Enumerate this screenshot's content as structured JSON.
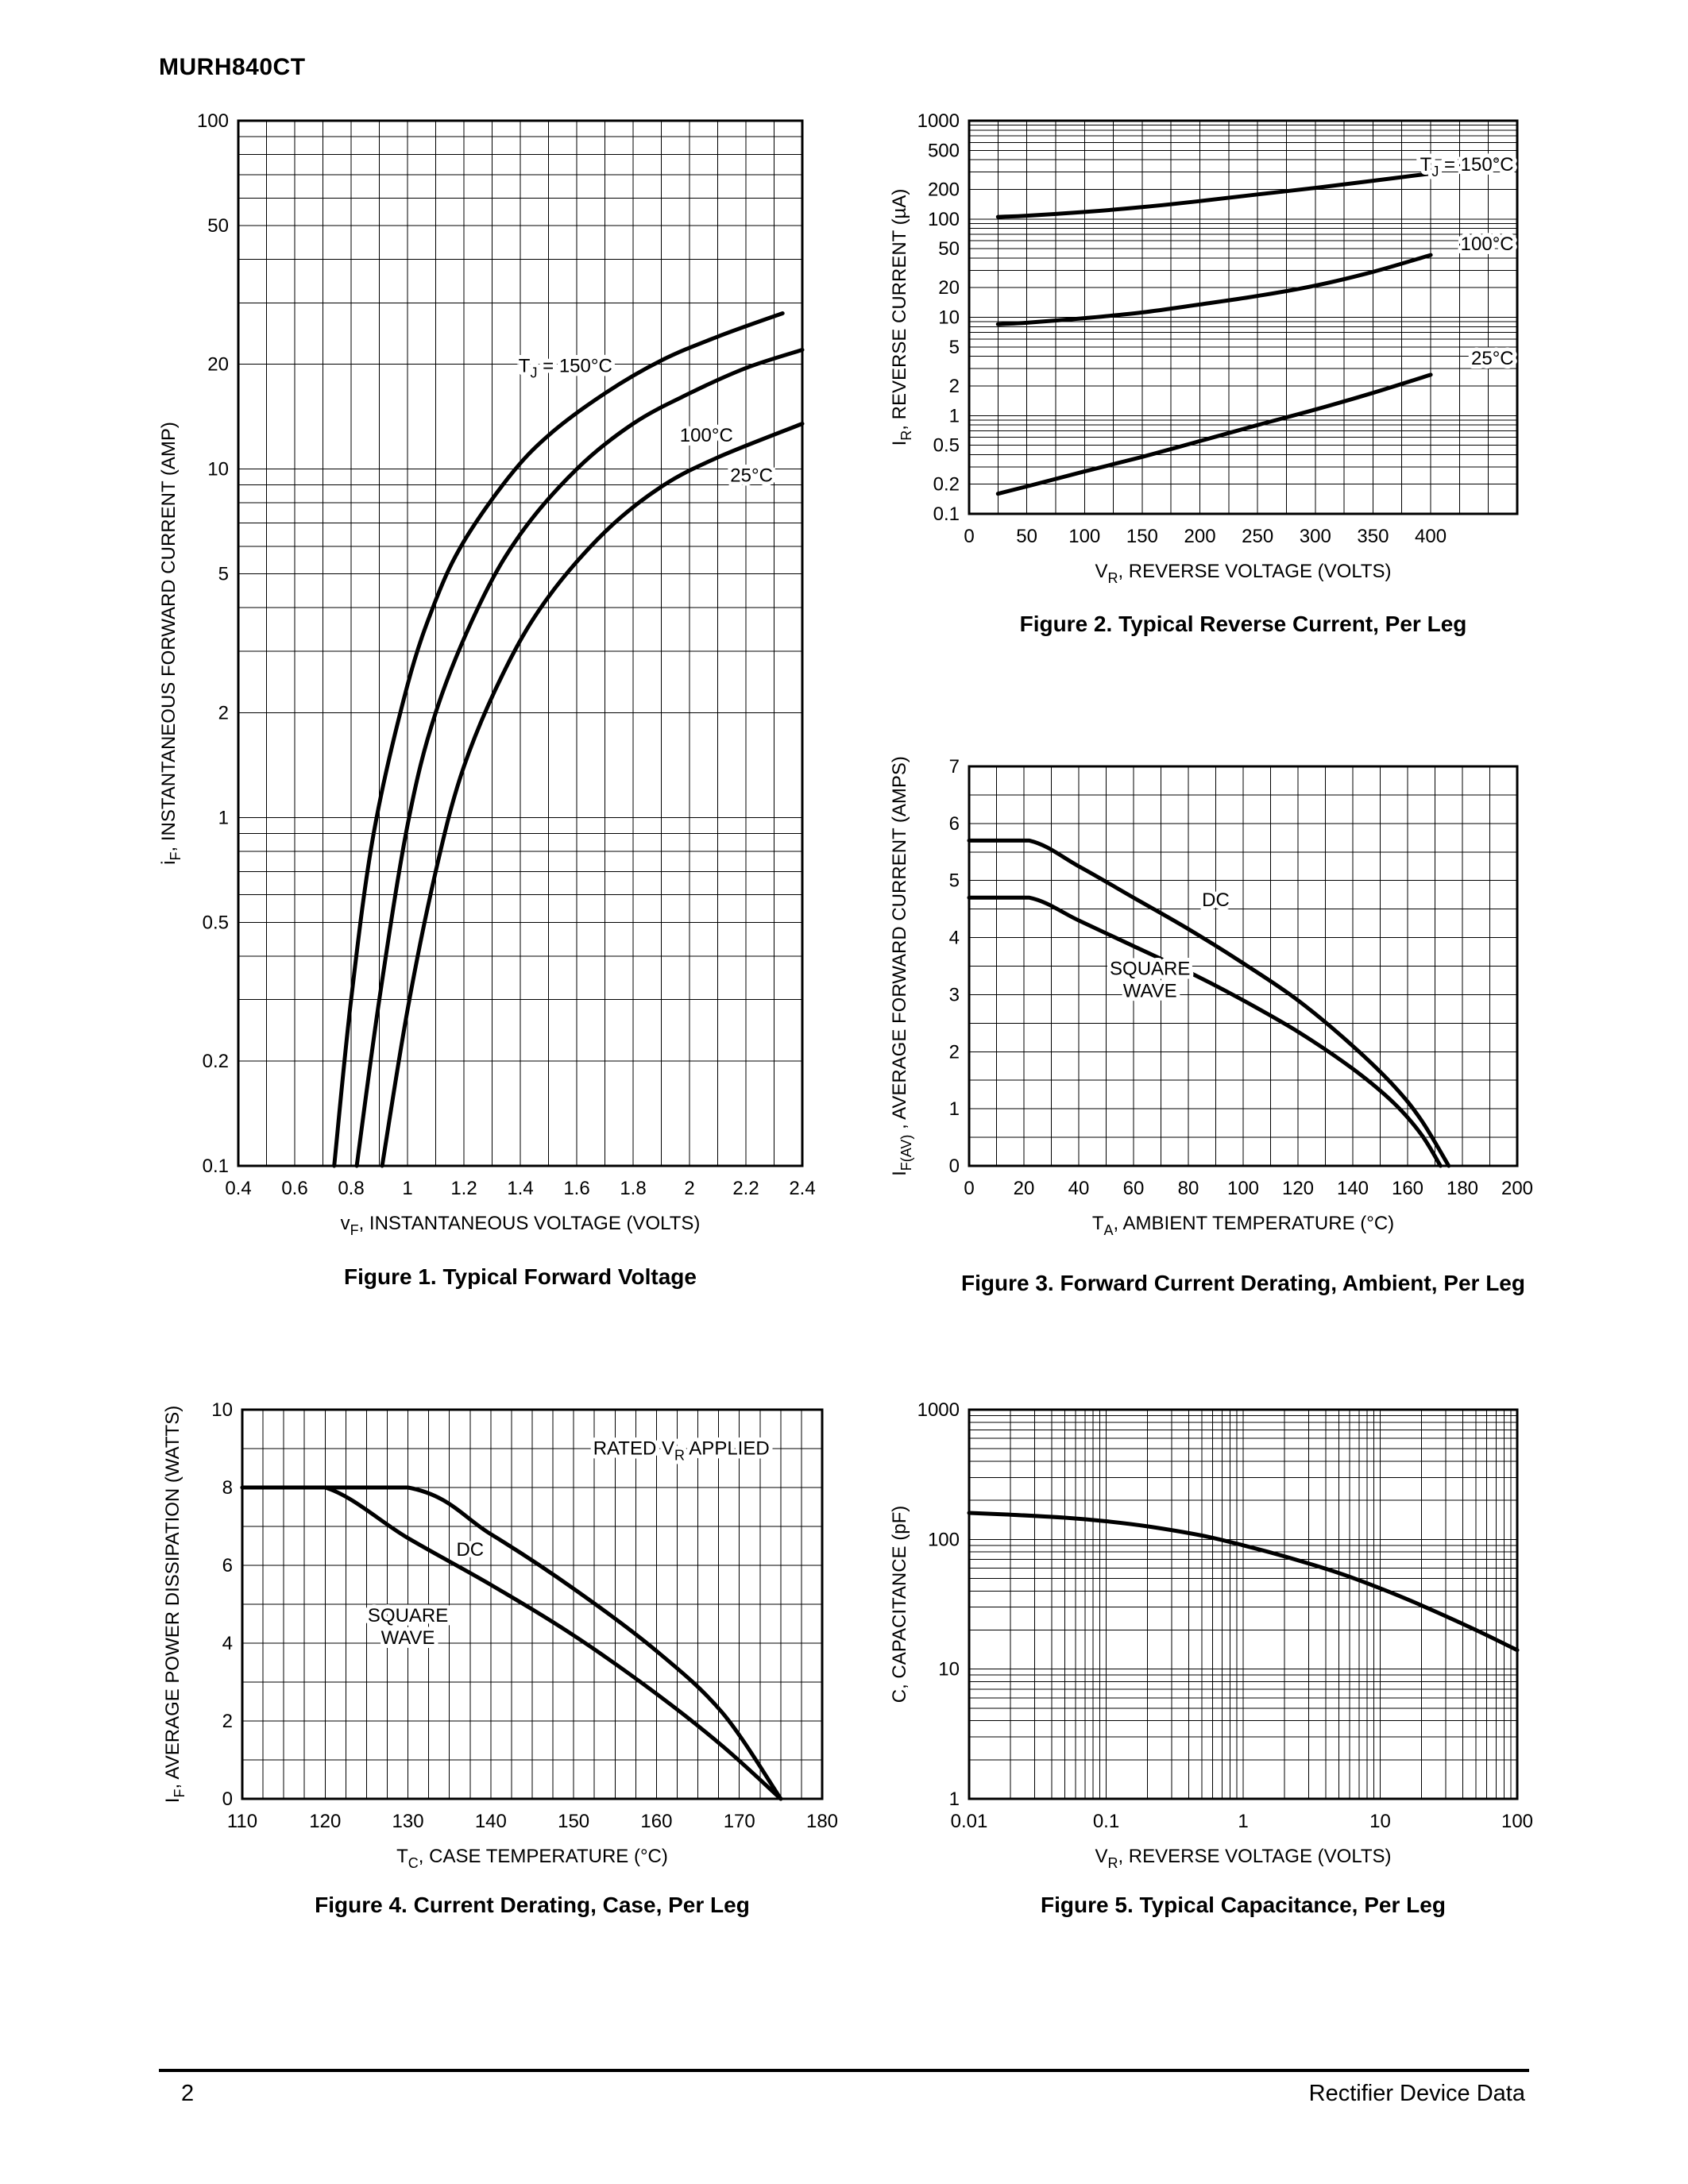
{
  "header": {
    "part_number": "MURH840CT"
  },
  "footer": {
    "page_number": "2",
    "right_text": "Rectifier Device Data"
  },
  "colors": {
    "ink": "#000000",
    "background": "#ffffff"
  },
  "figures": [
    {
      "caption": "Figure 1. Typical Forward Voltage"
    },
    {
      "caption": "Figure 2. Typical Reverse Current, Per Leg"
    },
    {
      "caption": "Figure 3. Forward Current Derating, Ambient, Per Leg"
    },
    {
      "caption": "Figure 4. Current Derating, Case, Per Leg"
    },
    {
      "caption": "Figure 5. Typical Capacitance, Per Leg"
    }
  ],
  "chart_data": [
    {
      "type": "line",
      "title": "Figure 1. Typical Forward Voltage",
      "x": {
        "scale": "linear",
        "min": 0.4,
        "max": 2.4,
        "minor": 0.1,
        "ticks": [
          0.4,
          0.6,
          0.8,
          1,
          1.2,
          1.4,
          1.6,
          1.8,
          2,
          2.2,
          2.4
        ],
        "title": [
          {
            "t": "v"
          },
          {
            "t": "F",
            "sub": true
          },
          {
            "t": ", INSTANTANEOUS VOLTAGE (VOLTS)"
          }
        ]
      },
      "y": {
        "scale": "log",
        "min": 0.1,
        "max": 100,
        "ticks": [
          100,
          50,
          20,
          10,
          5,
          2,
          1,
          0.5,
          0.2,
          0.1
        ],
        "title": [
          {
            "t": "i"
          },
          {
            "t": "F",
            "sub": true
          },
          {
            "t": ", INSTANTANEOUS FORWARD CURRENT (AMP)"
          }
        ]
      },
      "series": [
        {
          "name": "TJ = 150C",
          "points": [
            [
              0.74,
              0.1
            ],
            [
              0.8,
              0.3
            ],
            [
              0.88,
              0.9
            ],
            [
              1,
              2.4
            ],
            [
              1.1,
              4.2
            ],
            [
              1.2,
              6.2
            ],
            [
              1.36,
              9.5
            ],
            [
              1.5,
              12.5
            ],
            [
              1.7,
              16.5
            ],
            [
              1.9,
              20.5
            ],
            [
              2.1,
              24
            ],
            [
              2.33,
              28
            ]
          ]
        },
        {
          "name": "100C",
          "points": [
            [
              0.82,
              0.1
            ],
            [
              0.9,
              0.3
            ],
            [
              1,
              0.95
            ],
            [
              1.1,
              2
            ],
            [
              1.25,
              4
            ],
            [
              1.4,
              6.5
            ],
            [
              1.6,
              10
            ],
            [
              1.8,
              13.5
            ],
            [
              2,
              16.5
            ],
            [
              2.2,
              19.5
            ],
            [
              2.4,
              22
            ]
          ]
        },
        {
          "name": "25C",
          "points": [
            [
              0.91,
              0.1
            ],
            [
              1,
              0.28
            ],
            [
              1.1,
              0.7
            ],
            [
              1.2,
              1.4
            ],
            [
              1.35,
              2.7
            ],
            [
              1.5,
              4.3
            ],
            [
              1.7,
              6.6
            ],
            [
              1.9,
              8.9
            ],
            [
              2.1,
              10.8
            ],
            [
              2.4,
              13.5
            ]
          ]
        }
      ],
      "labels": [
        {
          "at": [
            1.56,
            19
          ],
          "anchor": "middle",
          "lines": [
            [
              {
                "t": "T"
              },
              {
                "t": "J",
                "sub": true
              },
              {
                "t": " = 150°C"
              }
            ]
          ]
        },
        {
          "at": [
            2.06,
            12
          ],
          "anchor": "middle",
          "lines": [
            "100°C"
          ]
        },
        {
          "at": [
            2.22,
            9.2
          ],
          "anchor": "middle",
          "lines": [
            "25°C"
          ]
        }
      ]
    },
    {
      "type": "line",
      "title": "Figure 2. Typical Reverse Current, Per Leg",
      "x": {
        "scale": "linear",
        "min": 0,
        "max": 475,
        "minor": 25,
        "ticks": [
          0,
          50,
          100,
          150,
          200,
          250,
          300,
          350,
          400
        ],
        "title": [
          {
            "t": "V"
          },
          {
            "t": "R",
            "sub": true
          },
          {
            "t": ", REVERSE VOLTAGE (VOLTS)"
          }
        ]
      },
      "y": {
        "scale": "log",
        "min": 0.1,
        "max": 1000,
        "ticks": [
          1000,
          500,
          200,
          100,
          50,
          20,
          10,
          5,
          2,
          1,
          0.5,
          0.2,
          0.1
        ],
        "title": [
          {
            "t": "I"
          },
          {
            "t": "R",
            "sub": true
          },
          {
            "t": ", REVERSE CURRENT (µA)"
          }
        ]
      },
      "series": [
        {
          "name": "TJ = 150C",
          "points": [
            [
              25,
              105
            ],
            [
              50,
              108
            ],
            [
              100,
              118
            ],
            [
              150,
              132
            ],
            [
              200,
              152
            ],
            [
              250,
              178
            ],
            [
              300,
              207
            ],
            [
              350,
              245
            ],
            [
              400,
              290
            ]
          ]
        },
        {
          "name": "100C",
          "points": [
            [
              25,
              8.5
            ],
            [
              50,
              8.8
            ],
            [
              100,
              9.8
            ],
            [
              150,
              11.2
            ],
            [
              200,
              13.5
            ],
            [
              250,
              16.5
            ],
            [
              300,
              21
            ],
            [
              350,
              29
            ],
            [
              400,
              43
            ]
          ]
        },
        {
          "name": "25C",
          "points": [
            [
              25,
              0.16
            ],
            [
              50,
              0.19
            ],
            [
              100,
              0.27
            ],
            [
              150,
              0.38
            ],
            [
              200,
              0.55
            ],
            [
              250,
              0.8
            ],
            [
              300,
              1.15
            ],
            [
              350,
              1.7
            ],
            [
              400,
              2.6
            ]
          ]
        }
      ],
      "labels": [
        {
          "at": [
            472,
            310
          ],
          "anchor": "end",
          "lines": [
            [
              {
                "t": "T"
              },
              {
                "t": "J",
                "sub": true
              },
              {
                "t": " = 150°C"
              }
            ]
          ]
        },
        {
          "at": [
            472,
            48
          ],
          "anchor": "end",
          "lines": [
            "100°C"
          ]
        },
        {
          "at": [
            472,
            3.3
          ],
          "anchor": "end",
          "lines": [
            "25°C"
          ]
        }
      ]
    },
    {
      "type": "line",
      "title": "Figure 3. Forward Current Derating, Ambient, Per Leg",
      "x": {
        "scale": "linear",
        "min": 0,
        "max": 200,
        "minor": 10,
        "ticks": [
          0,
          20,
          40,
          60,
          80,
          100,
          120,
          140,
          160,
          180,
          200
        ],
        "title": [
          {
            "t": "T"
          },
          {
            "t": "A",
            "sub": true
          },
          {
            "t": ", AMBIENT TEMPERATURE (°C)"
          }
        ]
      },
      "y": {
        "scale": "linear",
        "min": 0,
        "max": 7,
        "minor": 0.5,
        "ticks": [
          0,
          1,
          2,
          3,
          4,
          5,
          6,
          7
        ],
        "title": [
          {
            "t": "I"
          },
          {
            "t": "F(AV)",
            "sub": true
          },
          {
            "t": " , AVERAGE FORWARD CURRENT (AMPS)"
          }
        ]
      },
      "series": [
        {
          "name": "DC",
          "points": [
            [
              0,
              5.7
            ],
            [
              22,
              5.7
            ],
            [
              40,
              5.25
            ],
            [
              60,
              4.7
            ],
            [
              80,
              4.15
            ],
            [
              100,
              3.55
            ],
            [
              120,
              2.9
            ],
            [
              140,
              2.1
            ],
            [
              155,
              1.4
            ],
            [
              165,
              0.8
            ],
            [
              175,
              0
            ]
          ]
        },
        {
          "name": "SQUARE WAVE",
          "points": [
            [
              0,
              4.7
            ],
            [
              22,
              4.7
            ],
            [
              40,
              4.3
            ],
            [
              60,
              3.85
            ],
            [
              80,
              3.4
            ],
            [
              100,
              2.9
            ],
            [
              120,
              2.35
            ],
            [
              140,
              1.7
            ],
            [
              155,
              1.1
            ],
            [
              165,
              0.55
            ],
            [
              172,
              0
            ]
          ]
        }
      ],
      "labels": [
        {
          "at": [
            90,
            4.55
          ],
          "anchor": "middle",
          "lines": [
            "DC"
          ]
        },
        {
          "at": [
            66,
            3.35
          ],
          "anchor": "middle",
          "lines": [
            "SQUARE",
            "WAVE"
          ]
        }
      ]
    },
    {
      "type": "line",
      "title": "Figure 4. Current Derating, Case, Per Leg",
      "x": {
        "scale": "linear",
        "min": 110,
        "max": 180,
        "minor": 2.5,
        "ticks": [
          110,
          120,
          130,
          140,
          150,
          160,
          170,
          180
        ],
        "title": [
          {
            "t": "T"
          },
          {
            "t": "C",
            "sub": true
          },
          {
            "t": ", CASE TEMPERATURE (°C)"
          }
        ]
      },
      "y": {
        "scale": "linear",
        "min": 0,
        "max": 10,
        "minor": 1,
        "ticks": [
          0,
          2,
          4,
          6,
          8,
          10
        ],
        "title": [
          {
            "t": "I"
          },
          {
            "t": "F",
            "sub": true
          },
          {
            "t": ", AVERAGE POWER DISSIPATION (WATTS)"
          }
        ]
      },
      "series": [
        {
          "name": "DC",
          "points": [
            [
              110,
              8
            ],
            [
              130,
              8
            ],
            [
              140,
              6.8
            ],
            [
              150,
              5.4
            ],
            [
              160,
              3.8
            ],
            [
              168,
              2.2
            ],
            [
              175,
              0
            ]
          ]
        },
        {
          "name": "SQUARE WAVE",
          "points": [
            [
              110,
              8
            ],
            [
              120,
              8
            ],
            [
              130,
              6.7
            ],
            [
              140,
              5.5
            ],
            [
              150,
              4.2
            ],
            [
              160,
              2.7
            ],
            [
              168,
              1.35
            ],
            [
              175,
              0
            ]
          ]
        }
      ],
      "labels": [
        {
          "at": [
            163,
            8.85
          ],
          "anchor": "middle",
          "lines": [
            [
              {
                "t": "RATED V"
              },
              {
                "t": "R",
                "sub": true
              },
              {
                "t": " APPLIED"
              }
            ]
          ]
        },
        {
          "at": [
            137.5,
            6.25
          ],
          "anchor": "middle",
          "lines": [
            "DC"
          ]
        },
        {
          "at": [
            130,
            4.55
          ],
          "anchor": "middle",
          "lines": [
            "SQUARE",
            "WAVE"
          ]
        }
      ]
    },
    {
      "type": "line",
      "title": "Figure 5. Typical Capacitance, Per Leg",
      "x": {
        "scale": "log",
        "min": 0.01,
        "max": 100,
        "ticks": [
          0.01,
          0.1,
          1,
          10,
          100
        ],
        "title": [
          {
            "t": "V"
          },
          {
            "t": "R",
            "sub": true
          },
          {
            "t": ", REVERSE VOLTAGE (VOLTS)"
          }
        ]
      },
      "y": {
        "scale": "log",
        "min": 1,
        "max": 1000,
        "ticks": [
          1000,
          100,
          10,
          1
        ],
        "title": [
          "C, CAPACITANCE (pF)"
        ]
      },
      "series": [
        {
          "name": "C",
          "points": [
            [
              0.01,
              160
            ],
            [
              0.02,
              155
            ],
            [
              0.05,
              147
            ],
            [
              0.1,
              138
            ],
            [
              0.2,
              126
            ],
            [
              0.5,
              107
            ],
            [
              1,
              90
            ],
            [
              2,
              74
            ],
            [
              5,
              55
            ],
            [
              10,
              42
            ],
            [
              20,
              31
            ],
            [
              50,
              20
            ],
            [
              100,
              14
            ]
          ]
        }
      ],
      "labels": []
    }
  ]
}
